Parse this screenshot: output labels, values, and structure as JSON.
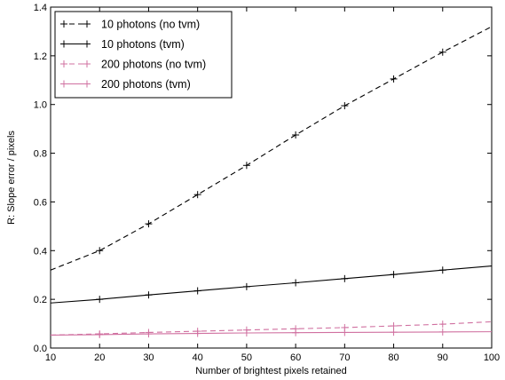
{
  "chart_data": {
    "type": "line",
    "xlabel": "Number of brightest pixels retained",
    "ylabel": "R: Slope error / pixels",
    "xlim": [
      10,
      100
    ],
    "ylim": [
      0.0,
      1.4
    ],
    "xticks": [
      "10",
      "20",
      "30",
      "40",
      "50",
      "60",
      "70",
      "80",
      "90",
      "100"
    ],
    "yticks": [
      "0.0",
      "0.2",
      "0.4",
      "0.6",
      "0.8",
      "1.0",
      "1.2",
      "1.4"
    ],
    "grid": false,
    "legend_position": "top-left",
    "series": [
      {
        "name": "10 photons (no tvm)",
        "color": "#000000",
        "linestyle": "dashed",
        "marker": "+",
        "x": [
          10,
          20,
          30,
          40,
          50,
          60,
          70,
          80,
          90,
          100
        ],
        "y": [
          0.32,
          0.4,
          0.51,
          0.63,
          0.75,
          0.875,
          0.995,
          1.105,
          1.215,
          1.32
        ]
      },
      {
        "name": "10 photons (tvm)",
        "color": "#000000",
        "linestyle": "solid",
        "marker": "+",
        "x": [
          10,
          20,
          30,
          40,
          50,
          60,
          70,
          80,
          90,
          100
        ],
        "y": [
          0.185,
          0.2,
          0.218,
          0.235,
          0.252,
          0.268,
          0.285,
          0.302,
          0.32,
          0.337
        ]
      },
      {
        "name": "200 photons (no tvm)",
        "color": "#d070a0",
        "linestyle": "dashed",
        "marker": "+",
        "x": [
          10,
          20,
          30,
          40,
          50,
          60,
          70,
          80,
          90,
          100
        ],
        "y": [
          0.053,
          0.058,
          0.064,
          0.069,
          0.074,
          0.079,
          0.084,
          0.091,
          0.098,
          0.108
        ]
      },
      {
        "name": "200 photons (tvm)",
        "color": "#d070a0",
        "linestyle": "solid",
        "marker": "+",
        "x": [
          10,
          20,
          30,
          40,
          50,
          60,
          70,
          80,
          90,
          100
        ],
        "y": [
          0.053,
          0.055,
          0.058,
          0.06,
          0.062,
          0.063,
          0.064,
          0.065,
          0.066,
          0.067
        ]
      }
    ]
  }
}
